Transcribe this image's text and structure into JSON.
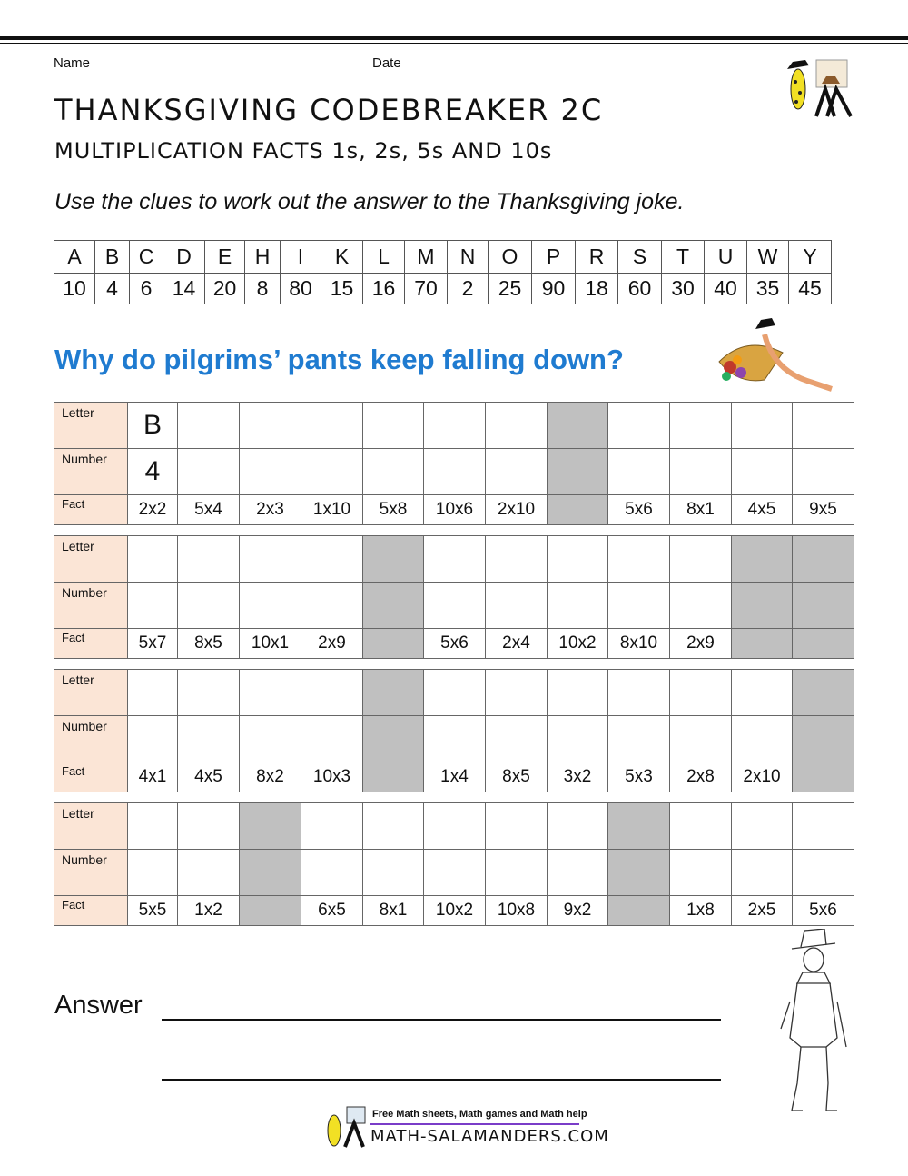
{
  "header": {
    "name_label": "Name",
    "date_label": "Date"
  },
  "title": "THANKSGIVING CODEBREAKER 2C",
  "subtitle": "MULTIPLICATION FACTS 1s, 2s, 5s AND 10s",
  "instructions": "Use the clues to work out the answer to the Thanksgiving joke.",
  "key": {
    "letters": [
      "A",
      "B",
      "C",
      "D",
      "E",
      "H",
      "I",
      "K",
      "L",
      "M",
      "N",
      "O",
      "P",
      "R",
      "S",
      "T",
      "U",
      "W",
      "Y"
    ],
    "numbers": [
      "10",
      "4",
      "6",
      "14",
      "20",
      "8",
      "80",
      "15",
      "16",
      "70",
      "2",
      "25",
      "90",
      "18",
      "60",
      "30",
      "40",
      "35",
      "45"
    ]
  },
  "question": "Why do pilgrims’ pants keep falling down?",
  "row_labels": {
    "letter": "Letter",
    "number": "Number",
    "fact": "Fact"
  },
  "tables": [
    {
      "example": {
        "letter": "B",
        "number": "4"
      },
      "facts": [
        "2x2",
        "5x4",
        "2x3",
        "1x10",
        "5x8",
        "10x6",
        "2x10",
        null,
        "5x6",
        "8x1",
        "4x5",
        "9x5"
      ]
    },
    {
      "facts": [
        "5x7",
        "8x5",
        "10x1",
        "2x9",
        null,
        "5x6",
        "2x4",
        "10x2",
        "8x10",
        "2x9",
        null,
        null
      ]
    },
    {
      "facts": [
        "4x1",
        "4x5",
        "8x2",
        "10x3",
        null,
        "1x4",
        "8x5",
        "3x2",
        "5x3",
        "2x8",
        "2x10",
        null
      ]
    },
    {
      "facts": [
        "5x5",
        "1x2",
        null,
        "6x5",
        "8x1",
        "10x2",
        "10x8",
        "9x2",
        null,
        "1x8",
        "2x5",
        "5x6"
      ]
    }
  ],
  "answer_label": "Answer",
  "footer": {
    "tagline": "Free Math sheets, Math games and Math help",
    "site": "MATH-SALAMANDERS.COM"
  },
  "colors": {
    "question": "#1f7bd0",
    "label_bg": "#fbe5d6",
    "shade": "#c0c0c0",
    "footer_rule": "#7a3cc8"
  },
  "icons": [
    "salamander-pilgrim-logo-icon",
    "cornucopia-salamander-icon",
    "pilgrim-drawing-icon"
  ]
}
